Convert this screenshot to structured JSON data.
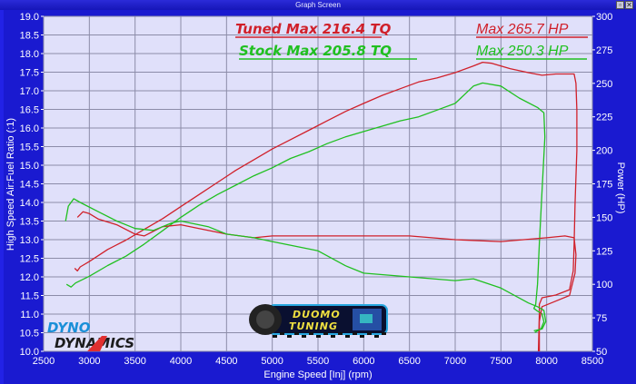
{
  "window": {
    "title": "Graph Screen",
    "buttons": [
      "restore",
      "close"
    ]
  },
  "annotations": {
    "tuned_tq": "Tuned Max 216.4 TQ",
    "stock_tq": "Stock Max 205.8 TQ",
    "tuned_hp": "Max 265.7 HP",
    "stock_hp": "Max 250.3 HP"
  },
  "logos": {
    "left_line1": "DYNO",
    "left_line2": "DYNAMICS",
    "center_line1": "DUOMO",
    "center_line2": "TUNING"
  },
  "colors": {
    "background": "#1a1ad0",
    "plot_bg": "#e0e0fa",
    "grid": "#8c8ca8",
    "tuned": "#d0202a",
    "stock": "#20c020"
  },
  "chart_data": {
    "type": "line",
    "title": "",
    "xlabel": "Engine Speed [Inj] (rpm)",
    "ylabel": "High Speed Air:Fuel Ratio (:1)",
    "ylabel_right": "Power (HP)",
    "xlim": [
      2500,
      8500
    ],
    "ylim": [
      10.0,
      19.0
    ],
    "ylim_right": [
      50,
      300
    ],
    "grid": true,
    "x_ticks": [
      "2500",
      "3000",
      "3500",
      "4000",
      "4500",
      "5000",
      "5500",
      "6000",
      "6500",
      "7000",
      "7500",
      "8000",
      "8500"
    ],
    "y_ticks": [
      "10.0",
      "10.5",
      "11.0",
      "11.5",
      "12.0",
      "12.5",
      "13.0",
      "13.5",
      "14.0",
      "14.5",
      "15.0",
      "15.5",
      "16.0",
      "16.5",
      "17.0",
      "17.5",
      "18.0",
      "18.5",
      "19.0"
    ],
    "y_ticks_right": [
      "50",
      "75",
      "100",
      "125",
      "150",
      "175",
      "200",
      "225",
      "250",
      "275",
      "300"
    ],
    "series": [
      {
        "name": "Tuned Power (HP)",
        "axis": "right",
        "color": "#d0202a",
        "points": [
          [
            2840,
            112
          ],
          [
            2870,
            110
          ],
          [
            2900,
            113
          ],
          [
            3000,
            117
          ],
          [
            3200,
            126
          ],
          [
            3400,
            133
          ],
          [
            3600,
            141
          ],
          [
            3800,
            149
          ],
          [
            4000,
            158
          ],
          [
            4200,
            167
          ],
          [
            4400,
            176
          ],
          [
            4600,
            185
          ],
          [
            4800,
            193
          ],
          [
            5000,
            201
          ],
          [
            5200,
            208
          ],
          [
            5400,
            215
          ],
          [
            5600,
            222
          ],
          [
            5800,
            229
          ],
          [
            6000,
            235
          ],
          [
            6200,
            241
          ],
          [
            6400,
            246
          ],
          [
            6600,
            251
          ],
          [
            6800,
            254
          ],
          [
            7000,
            258
          ],
          [
            7200,
            263
          ],
          [
            7300,
            265.7
          ],
          [
            7400,
            265
          ],
          [
            7600,
            261
          ],
          [
            7800,
            258
          ],
          [
            7950,
            256
          ],
          [
            8100,
            257
          ],
          [
            8300,
            257
          ],
          [
            8320,
            250
          ],
          [
            8330,
            230
          ],
          [
            8330,
            200
          ],
          [
            8310,
            160
          ],
          [
            8300,
            130
          ],
          [
            8290,
            110
          ],
          [
            8250,
            96
          ],
          [
            8100,
            92
          ],
          [
            7950,
            90
          ],
          [
            7920,
            85
          ],
          [
            7920,
            78
          ],
          [
            7910,
            50
          ]
        ]
      },
      {
        "name": "Stock Power (HP)",
        "axis": "right",
        "color": "#20c020",
        "points": [
          [
            2750,
            100
          ],
          [
            2800,
            98
          ],
          [
            2850,
            101
          ],
          [
            3000,
            106
          ],
          [
            3200,
            114
          ],
          [
            3400,
            121
          ],
          [
            3600,
            130
          ],
          [
            3800,
            140
          ],
          [
            4000,
            150
          ],
          [
            4200,
            159
          ],
          [
            4400,
            167
          ],
          [
            4600,
            174
          ],
          [
            4800,
            181
          ],
          [
            5000,
            187
          ],
          [
            5200,
            194
          ],
          [
            5400,
            199
          ],
          [
            5600,
            205
          ],
          [
            5800,
            210
          ],
          [
            6000,
            214
          ],
          [
            6200,
            218
          ],
          [
            6400,
            222
          ],
          [
            6600,
            225
          ],
          [
            6800,
            230
          ],
          [
            7000,
            235
          ],
          [
            7200,
            248
          ],
          [
            7300,
            250.3
          ],
          [
            7500,
            248
          ],
          [
            7700,
            239
          ],
          [
            7900,
            232
          ],
          [
            7970,
            228
          ],
          [
            7980,
            210
          ],
          [
            7950,
            170
          ],
          [
            7920,
            130
          ],
          [
            7900,
            100
          ],
          [
            7880,
            85
          ],
          [
            7860,
            82
          ],
          [
            7900,
            80
          ],
          [
            7950,
            78
          ],
          [
            7970,
            72
          ],
          [
            7940,
            67
          ],
          [
            7870,
            64
          ]
        ]
      },
      {
        "name": "Tuned AFR",
        "axis": "left",
        "color": "#d0202a",
        "points": [
          [
            2870,
            13.6
          ],
          [
            2930,
            13.75
          ],
          [
            3000,
            13.7
          ],
          [
            3100,
            13.55
          ],
          [
            3300,
            13.4
          ],
          [
            3500,
            13.15
          ],
          [
            3600,
            13.1
          ],
          [
            3800,
            13.35
          ],
          [
            4000,
            13.4
          ],
          [
            4200,
            13.3
          ],
          [
            4500,
            13.15
          ],
          [
            4800,
            13.05
          ],
          [
            5000,
            13.1
          ],
          [
            5500,
            13.1
          ],
          [
            6000,
            13.1
          ],
          [
            6500,
            13.1
          ],
          [
            7000,
            13.0
          ],
          [
            7500,
            12.95
          ],
          [
            8000,
            13.05
          ],
          [
            8200,
            13.1
          ],
          [
            8300,
            13.05
          ],
          [
            8320,
            12.6
          ],
          [
            8310,
            12.1
          ],
          [
            8250,
            11.5
          ],
          [
            8100,
            11.35
          ],
          [
            7950,
            11.2
          ],
          [
            7920,
            10.8
          ],
          [
            7920,
            10.0
          ]
        ]
      },
      {
        "name": "Stock AFR",
        "axis": "left",
        "color": "#20c020",
        "points": [
          [
            2740,
            13.5
          ],
          [
            2770,
            13.9
          ],
          [
            2830,
            14.1
          ],
          [
            2900,
            14.0
          ],
          [
            3100,
            13.75
          ],
          [
            3300,
            13.5
          ],
          [
            3500,
            13.3
          ],
          [
            3700,
            13.25
          ],
          [
            3900,
            13.45
          ],
          [
            4000,
            13.5
          ],
          [
            4300,
            13.35
          ],
          [
            4500,
            13.15
          ],
          [
            4800,
            13.05
          ],
          [
            5000,
            12.95
          ],
          [
            5500,
            12.7
          ],
          [
            5800,
            12.3
          ],
          [
            6000,
            12.1
          ],
          [
            6500,
            12.0
          ],
          [
            7000,
            11.9
          ],
          [
            7200,
            11.95
          ],
          [
            7500,
            11.7
          ],
          [
            7800,
            11.3
          ],
          [
            7900,
            11.2
          ],
          [
            7970,
            11.1
          ],
          [
            7990,
            10.8
          ],
          [
            7950,
            10.6
          ],
          [
            7860,
            10.55
          ]
        ]
      }
    ]
  }
}
